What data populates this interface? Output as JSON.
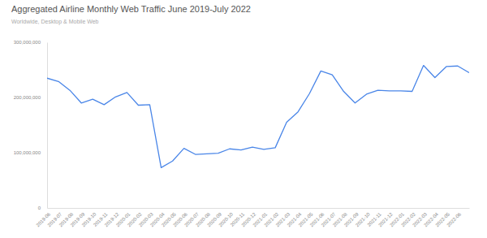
{
  "chart_data": {
    "type": "line",
    "title": "Aggregated Airline Monthly Web Traffic June 2019-July 2022",
    "subtitle": "Worldwide, Desktop & Mobile Web",
    "categories": [
      "2019-06",
      "2019-07",
      "2019-08",
      "2019-09",
      "2019-10",
      "2019-11",
      "2019-12",
      "2020-01",
      "2020-02",
      "2020-03",
      "2020-04",
      "2020-05",
      "2020-06",
      "2020-07",
      "2020-08",
      "2020-09",
      "2020-10",
      "2020-11",
      "2020-12",
      "2021-01",
      "2021-02",
      "2021-03",
      "2021-04",
      "2021-05",
      "2021-06",
      "2021-07",
      "2021-08",
      "2021-09",
      "2021-10",
      "2021-11",
      "2021-12",
      "2022-01",
      "2022-02",
      "2022-03",
      "2022-04",
      "2022-05",
      "2022-06",
      null
    ],
    "values": [
      235000000,
      229000000,
      213000000,
      190000000,
      197000000,
      187000000,
      201000000,
      209000000,
      186000000,
      187000000,
      73000000,
      85000000,
      108000000,
      97000000,
      98000000,
      99000000,
      107000000,
      105000000,
      110000000,
      106000000,
      109000000,
      155000000,
      174000000,
      207000000,
      248000000,
      241000000,
      211000000,
      190000000,
      206000000,
      213000000,
      212000000,
      212000000,
      211000000,
      258000000,
      236000000,
      256000000,
      257000000,
      245000000
    ],
    "color": "#4a86e8",
    "ylim": [
      0,
      300000000
    ],
    "yticks": [
      0,
      {
        "value": 100000000,
        "label": "100,000,000"
      },
      {
        "value": 200000000,
        "label": "200,000,000"
      },
      {
        "value": 300000000,
        "label": "300,000,000"
      }
    ],
    "grid": false
  }
}
